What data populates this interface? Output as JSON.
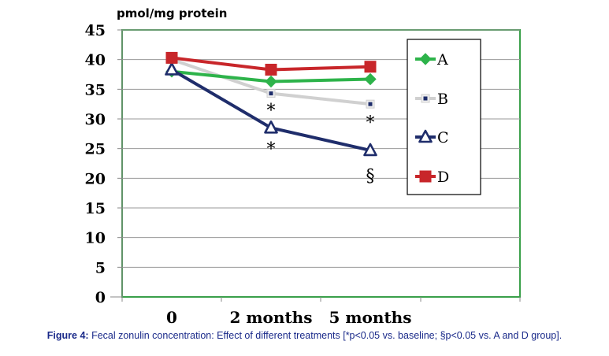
{
  "chart_data": {
    "type": "line",
    "ylabel": "pmol/mg protein",
    "ylim": [
      0,
      45
    ],
    "yticks": [
      0,
      5,
      10,
      15,
      20,
      25,
      30,
      35,
      40,
      45
    ],
    "categories": [
      "0",
      "2 months",
      "5 months"
    ],
    "grid": true,
    "legend_position": "top-right",
    "series": [
      {
        "name": "A",
        "values": [
          38.0,
          36.3,
          36.7
        ],
        "color": "#2db34a",
        "marker": "diamond"
      },
      {
        "name": "B",
        "values": [
          40.0,
          34.3,
          32.5
        ],
        "color": "#d0d0d0",
        "marker": "square-small",
        "markerColor": "#1f2d6b"
      },
      {
        "name": "C",
        "values": [
          38.3,
          28.5,
          24.7
        ],
        "color": "#1f2d6b",
        "marker": "triangle"
      },
      {
        "name": "D",
        "values": [
          40.3,
          38.3,
          38.8
        ],
        "color": "#c8262a",
        "marker": "square"
      }
    ],
    "annotations": [
      {
        "text": "*",
        "category": "2 months",
        "y": 31.5
      },
      {
        "text": "*",
        "category": "5 months",
        "y": 29.5
      },
      {
        "text": "*",
        "category": "2 months",
        "y": 25.0
      },
      {
        "text": "§",
        "category": "5 months",
        "y": 20.5
      }
    ]
  },
  "caption": {
    "label": "Figure 4:",
    "text": "Fecal zonulin concentration: Effect of different treatments [*p<0.05 vs. baseline; §p<0.05 vs. A and D group]."
  },
  "colors": {
    "plot_border": "#3aa04a",
    "grid": "#9a9a9a"
  }
}
